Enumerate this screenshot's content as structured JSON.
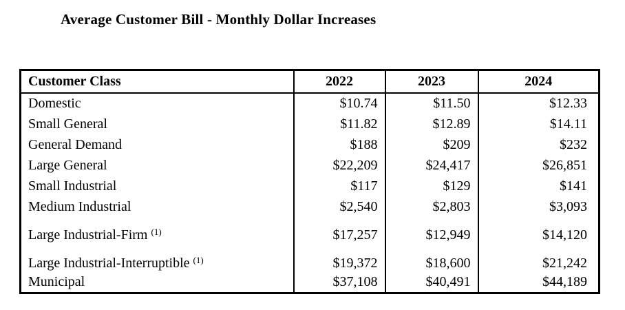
{
  "page": {
    "title": "Average Customer Bill - Monthly Dollar Increases",
    "text_color": "#000000",
    "background_color": "#ffffff",
    "border_color": "#000000"
  },
  "table": {
    "columns": [
      "Customer Class",
      "2022",
      "2023",
      "2024"
    ],
    "rows": [
      {
        "label": "Domestic",
        "sup": "",
        "values": [
          "$10.74",
          "$11.50",
          "$12.33"
        ]
      },
      {
        "label": "Small General",
        "sup": "",
        "values": [
          "$11.82",
          "$12.89",
          "$14.11"
        ]
      },
      {
        "label": "General Demand",
        "sup": "",
        "values": [
          "$188",
          "$209",
          "$232"
        ]
      },
      {
        "label": "Large General",
        "sup": "",
        "values": [
          "$22,209",
          "$24,417",
          "$26,851"
        ]
      },
      {
        "label": "Small Industrial",
        "sup": "",
        "values": [
          "$117",
          "$129",
          "$141"
        ]
      },
      {
        "label": "Medium Industrial",
        "sup": "",
        "values": [
          "$2,540",
          "$2,803",
          "$3,093"
        ]
      },
      {
        "label": "Large Industrial-Firm",
        "sup": "(1)",
        "values": [
          "$17,257",
          "$12,949",
          "$14,120"
        ]
      },
      {
        "label": "Large Industrial-Interruptible",
        "sup": "(1)",
        "values": [
          "$19,372",
          "$18,600",
          "$21,242"
        ]
      },
      {
        "label": "Municipal",
        "sup": "",
        "values": [
          "$37,108",
          "$40,491",
          "$44,189"
        ]
      }
    ]
  }
}
